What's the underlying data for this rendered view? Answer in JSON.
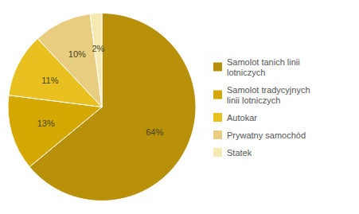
{
  "chart_data": {
    "type": "pie",
    "categories": [
      "Samolot tanich linii\nlotniczych",
      "Samolot tradycyjnych\nlinii lotniczych",
      "Autokar",
      "Prywatny samochód",
      "Statek"
    ],
    "values": [
      64,
      13,
      11,
      10,
      2
    ],
    "value_labels": [
      "64%",
      "13%",
      "11%",
      "10%",
      "2%"
    ],
    "colors": [
      "#b8900a",
      "#d4a800",
      "#e8c020",
      "#e8cc80",
      "#f5e8b0"
    ],
    "data_labels": true,
    "legend": "right"
  }
}
